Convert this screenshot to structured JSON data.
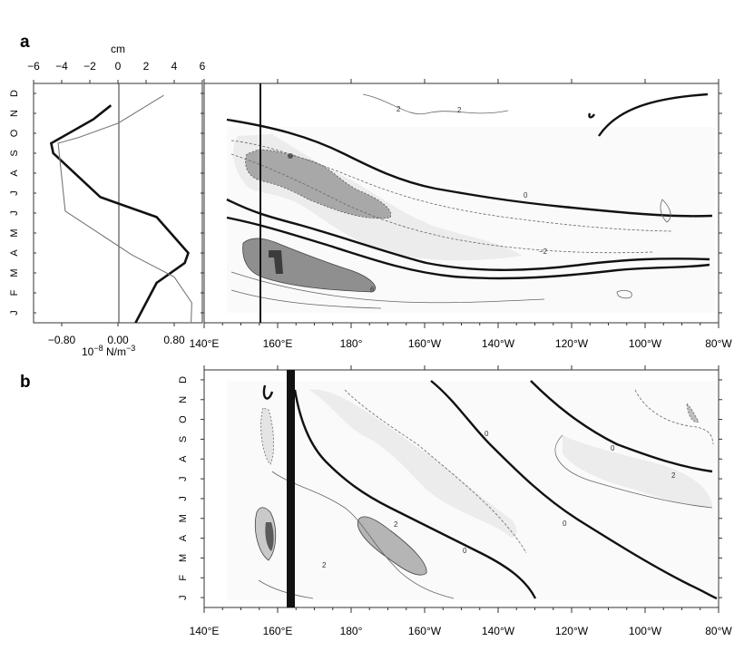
{
  "figure": {
    "panel_a_label": "a",
    "panel_b_label": "b"
  },
  "chart_data": [
    {
      "panel": "a-left",
      "type": "line",
      "top_axis_label": "cm",
      "top_ticks": [
        "−6",
        "−4",
        "−2",
        "0",
        "2",
        "4",
        "6"
      ],
      "top_range": [
        -6,
        6
      ],
      "bottom_ticks": [
        "−0.80",
        "0.00",
        "0.80"
      ],
      "bottom_label": "10",
      "bottom_label_exp": "−8",
      "bottom_label_unit": " N/m",
      "bottom_label_unit_exp": "−3",
      "bottom_range": [
        -1.2,
        1.2
      ],
      "months": [
        "J",
        "F",
        "M",
        "A",
        "M",
        "J",
        "J",
        "A",
        "S",
        "O",
        "N",
        "D"
      ],
      "series": [
        {
          "style": "thick",
          "points": [
            [
              0.25,
              0
            ],
            [
              0.4,
              1
            ],
            [
              0.55,
              2
            ],
            [
              0.95,
              3
            ],
            [
              1.0,
              3.5
            ],
            [
              0.55,
              5.3
            ],
            [
              -0.25,
              6.3
            ],
            [
              -0.92,
              8.5
            ],
            [
              -0.95,
              9
            ],
            [
              -0.35,
              10.2
            ],
            [
              -0.1,
              10.9
            ]
          ]
        },
        {
          "style": "thin",
          "points": [
            [
              1.04,
              0
            ],
            [
              1.05,
              1
            ],
            [
              0.8,
              2.3
            ],
            [
              0.2,
              3.4
            ],
            [
              -0.75,
              5.6
            ],
            [
              -0.85,
              9.0
            ],
            [
              -0.55,
              9.3
            ],
            [
              0.0,
              10.0
            ],
            [
              0.65,
              11.4
            ]
          ]
        }
      ]
    },
    {
      "panel": "a-right",
      "type": "heatmap",
      "x_ticks": [
        "140°E",
        "160°E",
        "180°",
        "160°W",
        "140°W",
        "120°W",
        "100°W",
        "80°W"
      ],
      "y_months": [
        "J",
        "F",
        "M",
        "A",
        "M",
        "J",
        "J",
        "A",
        "S",
        "O",
        "N",
        "D"
      ],
      "contour_labels": [
        "2",
        "2",
        "0",
        "−2",
        "6"
      ]
    },
    {
      "panel": "b",
      "type": "heatmap",
      "x_ticks": [
        "140°E",
        "160°E",
        "180°",
        "160°W",
        "140°W",
        "120°W",
        "100°W",
        "80°W"
      ],
      "y_months": [
        "J",
        "F",
        "M",
        "A",
        "M",
        "J",
        "J",
        "A",
        "S",
        "O",
        "N",
        "D"
      ],
      "contour_labels": [
        "0",
        "2",
        "0",
        "2",
        "0",
        "2",
        "0"
      ]
    }
  ]
}
